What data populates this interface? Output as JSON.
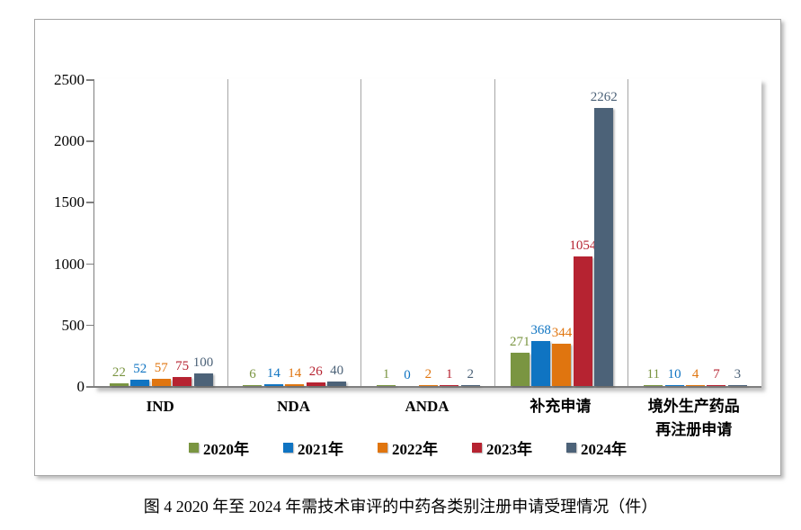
{
  "figure": {
    "caption": "图 4  2020 年至 2024 年需技术审评的中药各类别注册申请受理情况（件）"
  },
  "chart_data": {
    "type": "bar",
    "title": "",
    "xlabel": "",
    "ylabel": "",
    "categories": [
      "IND",
      "NDA",
      "ANDA",
      "补充申请",
      "境外生产药品再注册申请"
    ],
    "category_label_lines": [
      [
        "IND"
      ],
      [
        "NDA"
      ],
      [
        "ANDA"
      ],
      [
        "补充申请"
      ],
      [
        "境外生产药品",
        "再注册申请"
      ]
    ],
    "series": [
      {
        "name": "2020年",
        "color": "#7A9541",
        "values": [
          22,
          6,
          1,
          271,
          11
        ]
      },
      {
        "name": "2021年",
        "color": "#0F74C2",
        "values": [
          52,
          14,
          0,
          368,
          10
        ]
      },
      {
        "name": "2022年",
        "color": "#E0750F",
        "values": [
          57,
          14,
          2,
          344,
          4
        ]
      },
      {
        "name": "2023年",
        "color": "#B62331",
        "values": [
          75,
          26,
          1,
          1054,
          7
        ]
      },
      {
        "name": "2024年",
        "color": "#4C6278",
        "values": [
          100,
          40,
          2,
          2262,
          3
        ]
      }
    ],
    "ylim": [
      0,
      2500
    ],
    "yticks": [
      0,
      500,
      1000,
      1500,
      2000,
      2500
    ],
    "grid": "vertical-category-separators-only",
    "legend_position": "bottom",
    "bar_value_labels": true
  }
}
